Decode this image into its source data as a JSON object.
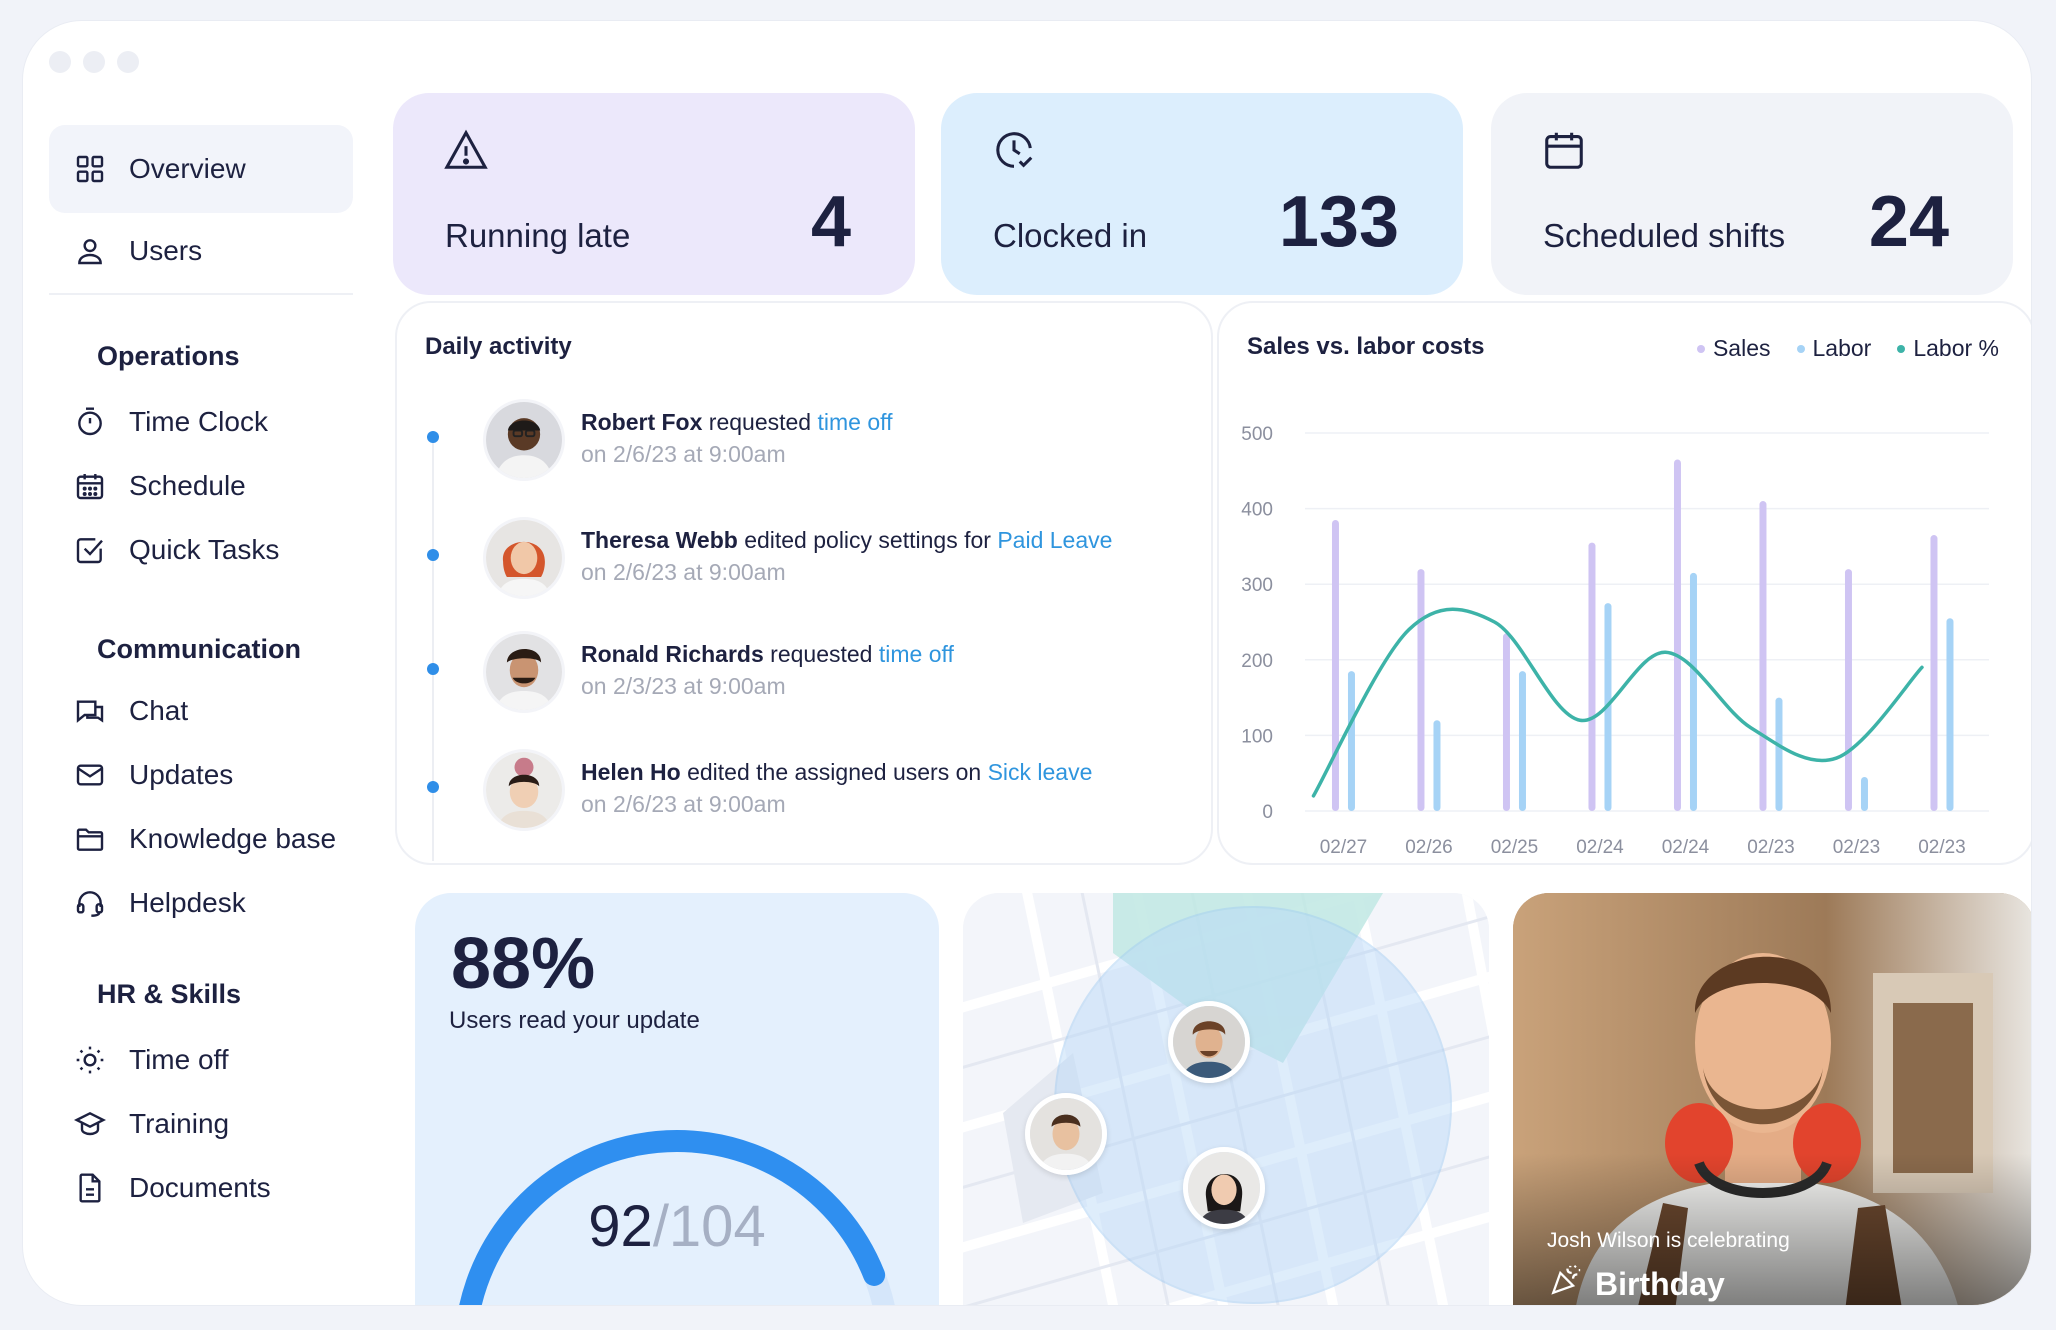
{
  "sidebar": {
    "main": [
      {
        "label": "Overview",
        "icon": "grid-icon",
        "active": true
      },
      {
        "label": "Users",
        "icon": "user-icon"
      }
    ],
    "sections": [
      {
        "title": "Operations",
        "items": [
          {
            "label": "Time Clock",
            "icon": "stopwatch-icon"
          },
          {
            "label": "Schedule",
            "icon": "calendar-grid-icon"
          },
          {
            "label": "Quick Tasks",
            "icon": "checkbox-icon"
          }
        ]
      },
      {
        "title": "Communication",
        "items": [
          {
            "label": "Chat",
            "icon": "chat-icon"
          },
          {
            "label": "Updates",
            "icon": "envelope-icon"
          },
          {
            "label": "Knowledge base",
            "icon": "folder-icon"
          },
          {
            "label": "Helpdesk",
            "icon": "headset-icon"
          }
        ]
      },
      {
        "title": "HR & Skills",
        "items": [
          {
            "label": "Time off",
            "icon": "sun-icon"
          },
          {
            "label": "Training",
            "icon": "graduation-cap-icon"
          },
          {
            "label": "Documents",
            "icon": "document-icon"
          }
        ]
      }
    ]
  },
  "stats": [
    {
      "label": "Running late",
      "value": "4",
      "icon": "warning-icon",
      "bg": "#ece8fb"
    },
    {
      "label": "Clocked in",
      "value": "133",
      "icon": "clock-check-icon",
      "bg": "#dceefd"
    },
    {
      "label": "Scheduled shifts",
      "value": "24",
      "icon": "calendar-icon",
      "bg": "#f1f3f8"
    }
  ],
  "activity": {
    "title": "Daily activity",
    "items": [
      {
        "name": "Robert Fox",
        "action": "requested",
        "target": "time off",
        "time": "on 2/6/23 at 9:00am"
      },
      {
        "name": "Theresa Webb",
        "action": "edited policy settings for",
        "target": "Paid Leave",
        "time": "on 2/6/23 at 9:00am"
      },
      {
        "name": "Ronald Richards",
        "action": "requested",
        "target": "time off",
        "time": "on 2/3/23 at 9:00am"
      },
      {
        "name": "Helen Ho",
        "action": "edited the assigned users on",
        "target": "Sick leave",
        "time": "on 2/6/23 at 9:00am"
      }
    ]
  },
  "chart_data": {
    "type": "bar",
    "title": "Sales vs. labor costs",
    "categories": [
      "02/27",
      "02/26",
      "02/25",
      "02/24",
      "02/24",
      "02/23",
      "02/23",
      "02/23"
    ],
    "series": [
      {
        "name": "Sales",
        "values": [
          385,
          320,
          235,
          355,
          465,
          410,
          320,
          365
        ],
        "color": "#cfc4f3"
      },
      {
        "name": "Labor",
        "values": [
          185,
          120,
          185,
          275,
          315,
          150,
          45,
          255
        ],
        "color": "#a6d3f6"
      },
      {
        "name": "Labor %",
        "type": "line",
        "values": [
          20,
          240,
          250,
          120,
          210,
          110,
          70,
          190
        ],
        "color": "#3db3a8"
      }
    ],
    "yticks": [
      0,
      100,
      200,
      300,
      400,
      500
    ],
    "ylim": [
      0,
      500
    ],
    "legend": "top-right",
    "grid": true
  },
  "read": {
    "percent": "88%",
    "subtitle": "Users read your update",
    "read_count": "92",
    "total": "/104",
    "fraction": 0.88
  },
  "birthday": {
    "caption": "Josh Wilson is celebrating",
    "event": "Birthday"
  }
}
